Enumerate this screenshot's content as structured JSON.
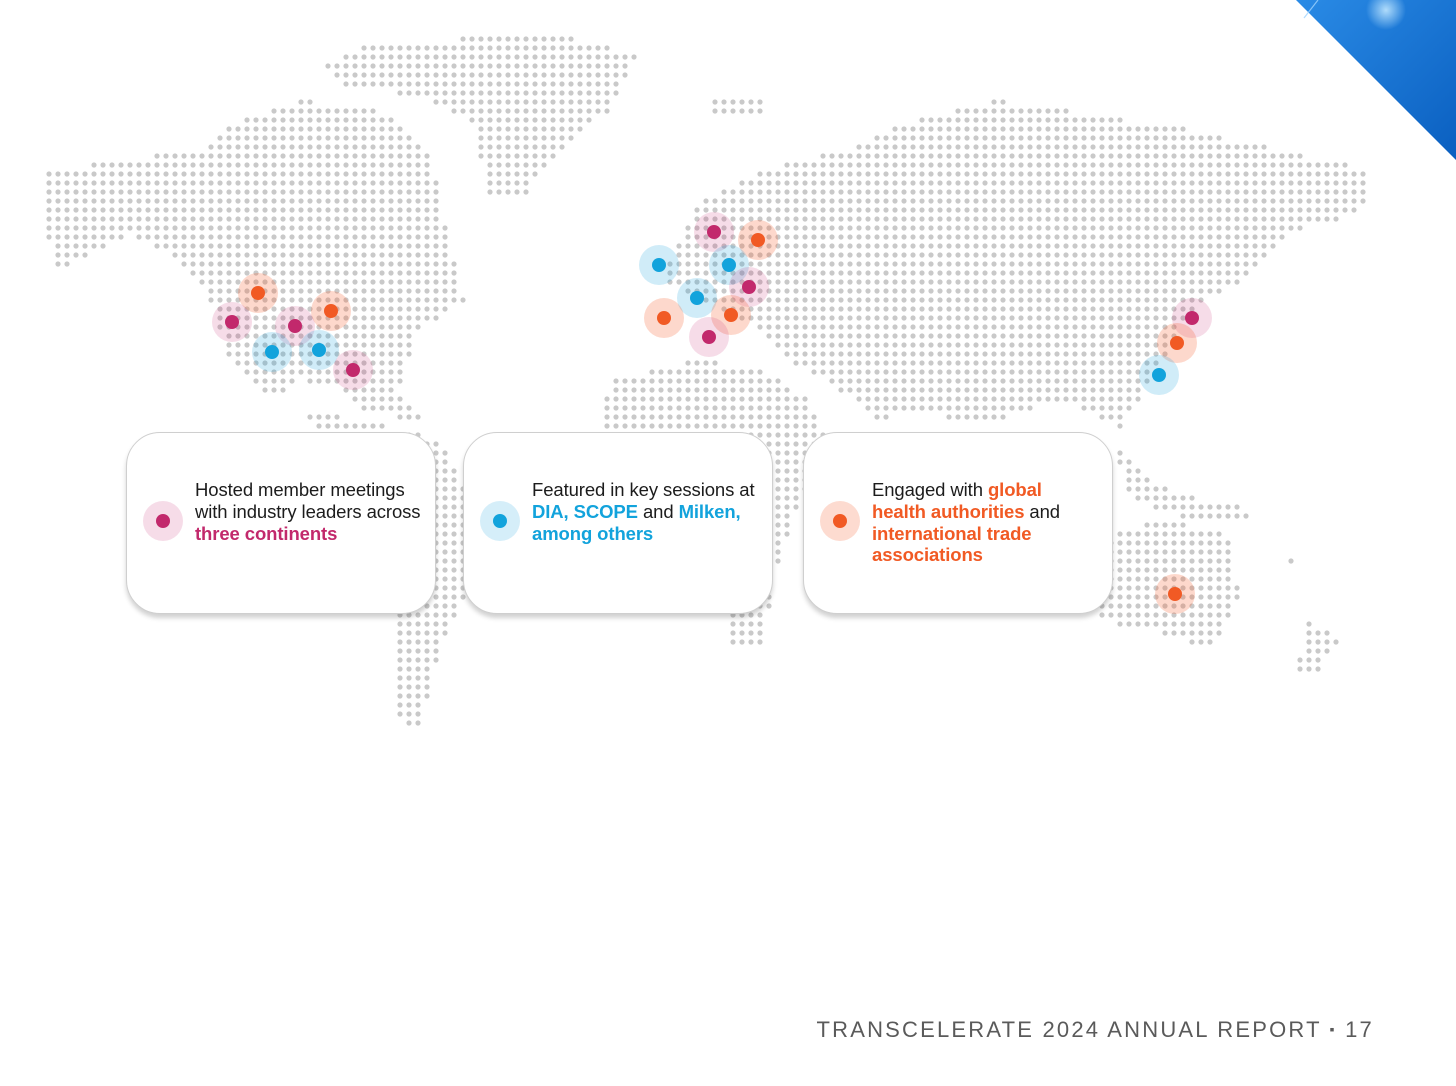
{
  "colors": {
    "pink": "#c2296c",
    "blue": "#12a3dc",
    "orange": "#f15a24",
    "map_dot": "#c9c9c9",
    "corner_accent": "#0d6fd0"
  },
  "cards": [
    {
      "marker_color": "pink",
      "icon": "pink-location-dot-icon",
      "text_plain_1": "Hosted member meetings with industry leaders across ",
      "text_highlight_1": "three continents"
    },
    {
      "marker_color": "blue",
      "icon": "blue-location-dot-icon",
      "text_plain_1": "Featured in key sessions at ",
      "text_highlight_1": "DIA, SCOPE",
      "text_plain_2": " and ",
      "text_highlight_2": "Milken, among others"
    },
    {
      "marker_color": "orange",
      "icon": "orange-location-dot-icon",
      "text_plain_1": "Engaged with ",
      "text_highlight_1": "global health authorities",
      "text_plain_2": " and ",
      "text_highlight_2": "international trade associations"
    }
  ],
  "footer": {
    "text": "TRANSCELERATE 2024 ANNUAL REPORT",
    "separator": "▪",
    "page_number": "17"
  }
}
